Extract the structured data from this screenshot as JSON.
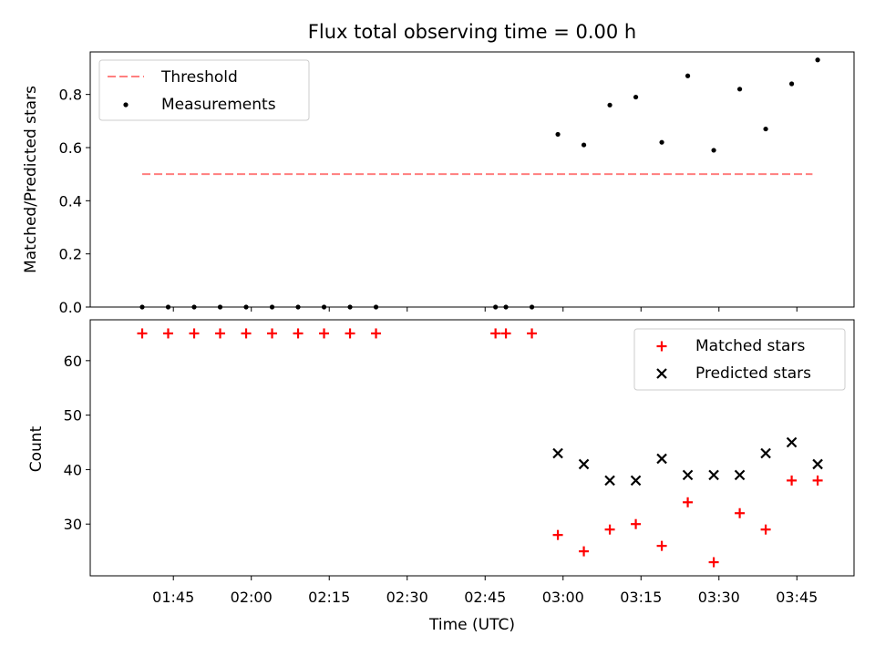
{
  "chart_data": [
    {
      "type": "scatter",
      "title": "Flux total observing time = 0.00 h",
      "xlabel": "",
      "ylabel": "Matched/Predicted stars",
      "ylim": [
        0,
        0.96
      ],
      "yticks": [
        "0.0",
        "0.2",
        "0.4",
        "0.6",
        "0.8"
      ],
      "legend_position": "top-left",
      "threshold": {
        "name": "Threshold",
        "value": 0.5,
        "x_range": [
          "01:39",
          "03:48"
        ],
        "color": "#ff7f7f",
        "style": "dashed"
      },
      "series": [
        {
          "name": "Measurements",
          "color": "#000000",
          "marker": "dot",
          "x": [
            "01:39",
            "01:44",
            "01:49",
            "01:54",
            "01:59",
            "02:04",
            "02:09",
            "02:14",
            "02:19",
            "02:24",
            "02:47",
            "02:49",
            "02:54",
            "02:59",
            "03:04",
            "03:09",
            "03:14",
            "03:19",
            "03:24",
            "03:29",
            "03:34",
            "03:39",
            "03:44",
            "03:49"
          ],
          "y": [
            0,
            0,
            0,
            0,
            0,
            0,
            0,
            0,
            0,
            0,
            0,
            0,
            0,
            0.65,
            0.61,
            0.76,
            0.79,
            0.62,
            0.87,
            0.59,
            0.82,
            0.67,
            0.84,
            0.93
          ]
        }
      ]
    },
    {
      "type": "scatter",
      "title": "",
      "xlabel": "Time (UTC)",
      "ylabel": "Count",
      "ylim": [
        20.5,
        67.5
      ],
      "yticks": [
        "30",
        "40",
        "50",
        "60"
      ],
      "xlim": [
        "01:29",
        "03:56"
      ],
      "xticks": [
        "01:45",
        "02:00",
        "02:15",
        "02:30",
        "02:45",
        "03:00",
        "03:15",
        "03:30",
        "03:45"
      ],
      "legend_position": "top-right",
      "series": [
        {
          "name": "Matched stars",
          "color": "#ff0000",
          "marker": "plus",
          "x": [
            "01:39",
            "01:44",
            "01:49",
            "01:54",
            "01:59",
            "02:04",
            "02:09",
            "02:14",
            "02:19",
            "02:24",
            "02:47",
            "02:49",
            "02:54",
            "02:59",
            "03:04",
            "03:09",
            "03:14",
            "03:19",
            "03:24",
            "03:29",
            "03:34",
            "03:39",
            "03:44",
            "03:49"
          ],
          "y": [
            65,
            65,
            65,
            65,
            65,
            65,
            65,
            65,
            65,
            65,
            65,
            65,
            65,
            28,
            25,
            29,
            30,
            26,
            34,
            23,
            32,
            29,
            38,
            38
          ]
        },
        {
          "name": "Predicted stars",
          "color": "#000000",
          "marker": "x",
          "x": [
            "02:59",
            "03:04",
            "03:09",
            "03:14",
            "03:19",
            "03:24",
            "03:29",
            "03:34",
            "03:39",
            "03:44",
            "03:49"
          ],
          "y": [
            43,
            41,
            38,
            38,
            42,
            39,
            39,
            39,
            43,
            45,
            41
          ]
        }
      ]
    }
  ]
}
